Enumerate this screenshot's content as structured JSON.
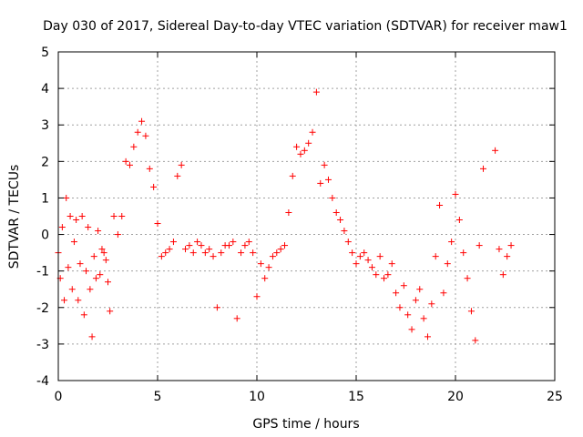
{
  "chart_data": {
    "type": "scatter",
    "title": "Day 030 of 2017, Sidereal Day-to-day VTEC variation (SDTVAR) for receiver maw1",
    "xlabel": "GPS time / hours",
    "ylabel": "SDTVAR / TECUs",
    "xlim": [
      0,
      25
    ],
    "ylim": [
      -4,
      5
    ],
    "xticks": [
      "0",
      "5",
      "10",
      "15",
      "20",
      "25"
    ],
    "yticks": [
      "-4",
      "-3",
      "-2",
      "-1",
      "0",
      "1",
      "2",
      "3",
      "4",
      "5"
    ],
    "grid": true,
    "marker": "+",
    "color": "#ff0000",
    "series": [
      {
        "name": "maw1",
        "x": [
          0.0,
          0.1,
          0.2,
          0.3,
          0.4,
          0.5,
          0.6,
          0.7,
          0.8,
          0.9,
          1.0,
          1.1,
          1.2,
          1.3,
          1.4,
          1.5,
          1.6,
          1.7,
          1.8,
          1.9,
          2.0,
          2.1,
          2.2,
          2.3,
          2.4,
          2.5,
          2.6,
          2.8,
          3.0,
          3.2,
          3.4,
          3.6,
          3.8,
          4.0,
          4.2,
          4.4,
          4.6,
          4.8,
          5.0,
          5.2,
          5.4,
          5.6,
          5.8,
          6.0,
          6.2,
          6.4,
          6.6,
          6.8,
          7.0,
          7.2,
          7.4,
          7.6,
          7.8,
          8.0,
          8.2,
          8.4,
          8.6,
          8.8,
          9.0,
          9.2,
          9.4,
          9.6,
          9.8,
          10.0,
          10.2,
          10.4,
          10.6,
          10.8,
          11.0,
          11.2,
          11.4,
          11.6,
          11.8,
          12.0,
          12.2,
          12.4,
          12.6,
          12.8,
          13.0,
          13.2,
          13.4,
          13.6,
          13.8,
          14.0,
          14.2,
          14.4,
          14.6,
          14.8,
          15.0,
          15.2,
          15.4,
          15.6,
          15.8,
          16.0,
          16.2,
          16.4,
          16.6,
          16.8,
          17.0,
          17.2,
          17.4,
          17.6,
          17.8,
          18.0,
          18.2,
          18.4,
          18.6,
          18.8,
          19.0,
          19.2,
          19.4,
          19.6,
          19.8,
          20.0,
          20.2,
          20.4,
          20.6,
          20.8,
          21.0,
          21.2,
          21.4,
          22.0,
          22.2,
          22.4,
          22.6,
          22.8
        ],
        "y": [
          -0.5,
          -1.2,
          0.2,
          -1.8,
          1.0,
          -0.9,
          0.5,
          -1.5,
          -0.2,
          0.4,
          -1.8,
          -0.8,
          0.5,
          -2.2,
          -1.0,
          0.2,
          -1.5,
          -2.8,
          -0.6,
          -1.2,
          0.1,
          -1.1,
          -0.4,
          -0.5,
          -0.7,
          -1.3,
          -2.1,
          0.5,
          0.0,
          0.5,
          2.0,
          1.9,
          2.4,
          2.8,
          3.1,
          2.7,
          1.8,
          1.3,
          0.3,
          -0.6,
          -0.5,
          -0.4,
          -0.2,
          1.6,
          1.9,
          -0.4,
          -0.3,
          -0.5,
          -0.2,
          -0.3,
          -0.5,
          -0.4,
          -0.6,
          -2.0,
          -0.5,
          -0.3,
          -0.3,
          -0.2,
          -2.3,
          -0.5,
          -0.3,
          -0.2,
          -0.5,
          -1.7,
          -0.8,
          -1.2,
          -0.9,
          -0.6,
          -0.5,
          -0.4,
          -0.3,
          0.6,
          1.6,
          2.4,
          2.2,
          2.3,
          2.5,
          2.8,
          3.9,
          1.4,
          1.9,
          1.5,
          1.0,
          0.6,
          0.4,
          0.1,
          -0.2,
          -0.5,
          -0.8,
          -0.6,
          -0.5,
          -0.7,
          -0.9,
          -1.1,
          -0.6,
          -1.2,
          -1.1,
          -0.8,
          -1.6,
          -2.0,
          -1.4,
          -2.2,
          -2.6,
          -1.8,
          -1.5,
          -2.3,
          -2.8,
          -1.9,
          -0.6,
          0.8,
          -1.6,
          -0.8,
          -0.2,
          1.1,
          0.4,
          -0.5,
          -1.2,
          -2.1,
          -2.9,
          -0.3,
          1.8,
          2.3,
          -0.4,
          -1.1,
          -0.6,
          -0.3
        ]
      }
    ]
  }
}
